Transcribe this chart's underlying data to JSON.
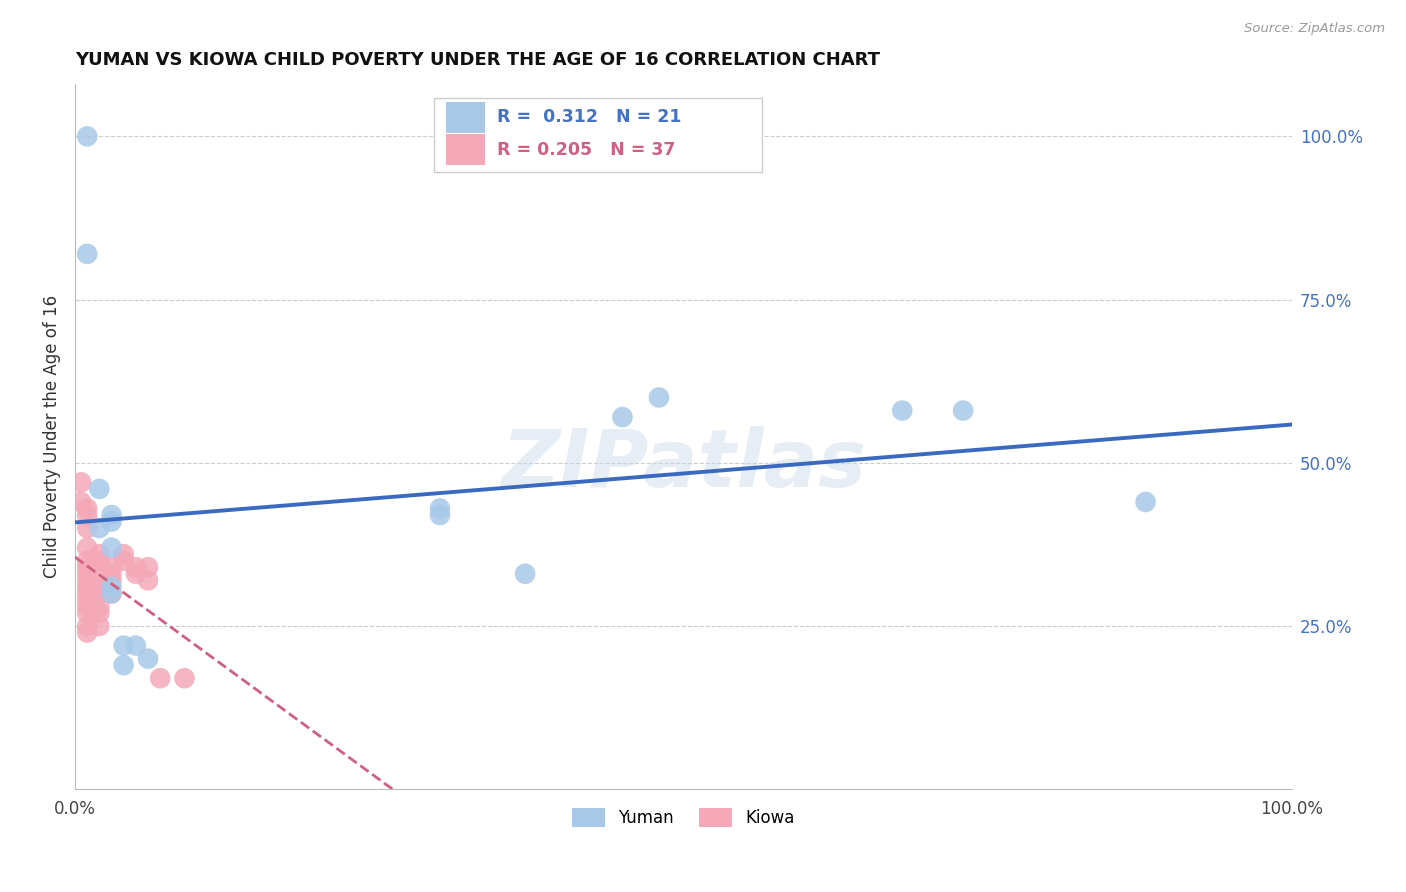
{
  "title": "YUMAN VS KIOWA CHILD POVERTY UNDER THE AGE OF 16 CORRELATION CHART",
  "source": "Source: ZipAtlas.com",
  "ylabel": "Child Poverty Under the Age of 16",
  "yuman_R": 0.312,
  "yuman_N": 21,
  "kiowa_R": 0.205,
  "kiowa_N": 37,
  "yuman_color": "#a8c8e8",
  "kiowa_color": "#f4a8b8",
  "yuman_line_color": "#3a6abf",
  "kiowa_line_color": "#d06080",
  "watermark": "ZIPatlas",
  "yuman_points": [
    [
      0.01,
      1.0
    ],
    [
      0.01,
      0.82
    ],
    [
      0.02,
      0.46
    ],
    [
      0.02,
      0.4
    ],
    [
      0.03,
      0.42
    ],
    [
      0.03,
      0.41
    ],
    [
      0.03,
      0.37
    ],
    [
      0.03,
      0.31
    ],
    [
      0.03,
      0.3
    ],
    [
      0.04,
      0.22
    ],
    [
      0.04,
      0.19
    ],
    [
      0.05,
      0.22
    ],
    [
      0.06,
      0.2
    ],
    [
      0.3,
      0.43
    ],
    [
      0.3,
      0.42
    ],
    [
      0.37,
      0.33
    ],
    [
      0.45,
      0.57
    ],
    [
      0.48,
      0.6
    ],
    [
      0.68,
      0.58
    ],
    [
      0.73,
      0.58
    ],
    [
      0.88,
      0.44
    ]
  ],
  "kiowa_points": [
    [
      0.005,
      0.47
    ],
    [
      0.005,
      0.44
    ],
    [
      0.01,
      0.43
    ],
    [
      0.01,
      0.42
    ],
    [
      0.01,
      0.4
    ],
    [
      0.01,
      0.37
    ],
    [
      0.01,
      0.35
    ],
    [
      0.01,
      0.34
    ],
    [
      0.01,
      0.33
    ],
    [
      0.01,
      0.32
    ],
    [
      0.01,
      0.31
    ],
    [
      0.01,
      0.3
    ],
    [
      0.01,
      0.29
    ],
    [
      0.01,
      0.28
    ],
    [
      0.01,
      0.27
    ],
    [
      0.01,
      0.25
    ],
    [
      0.01,
      0.24
    ],
    [
      0.02,
      0.36
    ],
    [
      0.02,
      0.35
    ],
    [
      0.02,
      0.33
    ],
    [
      0.02,
      0.31
    ],
    [
      0.02,
      0.3
    ],
    [
      0.02,
      0.28
    ],
    [
      0.02,
      0.27
    ],
    [
      0.02,
      0.25
    ],
    [
      0.03,
      0.34
    ],
    [
      0.03,
      0.33
    ],
    [
      0.03,
      0.32
    ],
    [
      0.03,
      0.3
    ],
    [
      0.04,
      0.36
    ],
    [
      0.04,
      0.35
    ],
    [
      0.05,
      0.34
    ],
    [
      0.05,
      0.33
    ],
    [
      0.06,
      0.34
    ],
    [
      0.06,
      0.32
    ],
    [
      0.07,
      0.17
    ],
    [
      0.09,
      0.17
    ]
  ],
  "xlim": [
    0.0,
    1.0
  ],
  "ylim": [
    0.0,
    1.08
  ],
  "grid_values": [
    0.25,
    0.5,
    0.75,
    1.0
  ],
  "figsize": [
    14.06,
    8.92
  ],
  "dpi": 100
}
